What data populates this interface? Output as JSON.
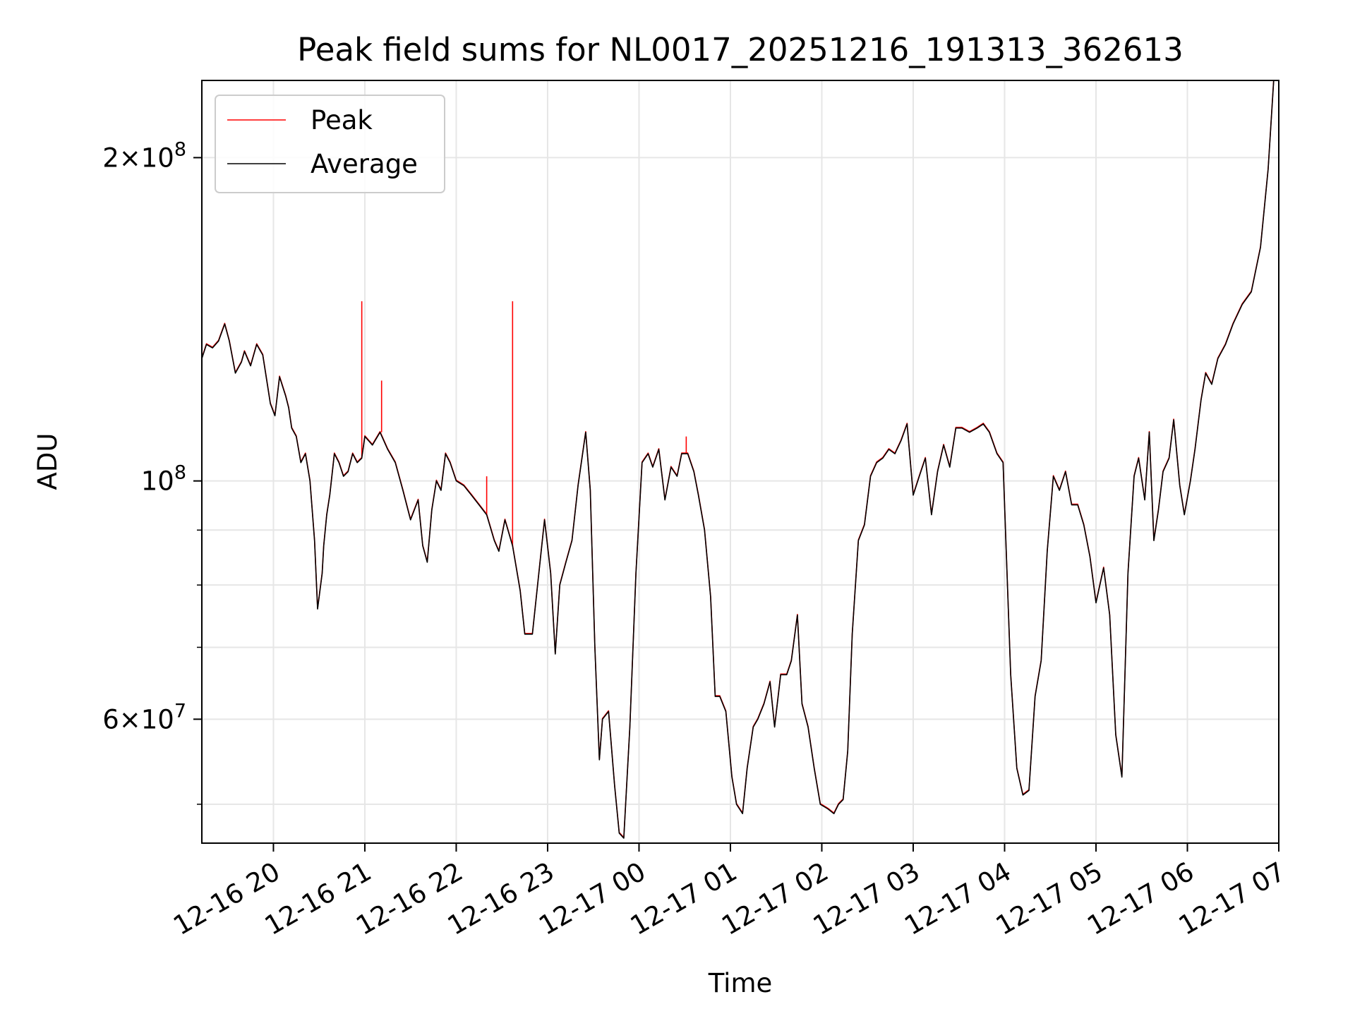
{
  "chart_data": {
    "type": "line",
    "title": "Peak field sums for NL0017_20251216_191313_362613",
    "xlabel": "Time",
    "ylabel": "ADU",
    "y_scale": "log",
    "ylim": [
      46000000,
      236000000
    ],
    "xlim": [
      "2025-12-16 19:13",
      "2025-12-17 07:00"
    ],
    "grid": true,
    "legend_position": "top-left",
    "x_tick_labels": [
      "12-16 20",
      "12-16 21",
      "12-16 22",
      "12-16 23",
      "12-17 00",
      "12-17 01",
      "12-17 02",
      "12-17 03",
      "12-17 04",
      "12-17 05",
      "12-17 06",
      "12-17 07"
    ],
    "x_ticks": [
      "2025-12-16 20:00",
      "2025-12-16 21:00",
      "2025-12-16 22:00",
      "2025-12-16 23:00",
      "2025-12-17 00:00",
      "2025-12-17 01:00",
      "2025-12-17 02:00",
      "2025-12-17 03:00",
      "2025-12-17 04:00",
      "2025-12-17 05:00",
      "2025-12-17 06:00",
      "2025-12-17 07:00"
    ],
    "y_major_ticks": [
      {
        "value": 60000000,
        "mantissa": "6",
        "exponent": "7"
      },
      {
        "value": 100000000,
        "mantissa": "",
        "exponent": "8"
      },
      {
        "value": 200000000,
        "mantissa": "2",
        "exponent": "8"
      }
    ],
    "y_minor_ticks": [
      50000000,
      70000000,
      80000000,
      90000000
    ],
    "series": [
      {
        "name": "Average",
        "color": "#000000",
        "x": [
          "2025-12-16 19:13",
          "2025-12-16 19:16",
          "2025-12-16 19:20",
          "2025-12-16 19:24",
          "2025-12-16 19:28",
          "2025-12-16 19:31",
          "2025-12-16 19:35",
          "2025-12-16 19:39",
          "2025-12-16 19:41",
          "2025-12-16 19:45",
          "2025-12-16 19:49",
          "2025-12-16 19:53",
          "2025-12-16 19:58",
          "2025-12-16 20:01",
          "2025-12-16 20:04",
          "2025-12-16 20:08",
          "2025-12-16 20:10",
          "2025-12-16 20:12",
          "2025-12-16 20:15",
          "2025-12-16 20:18",
          "2025-12-16 20:21",
          "2025-12-16 20:24",
          "2025-12-16 20:27",
          "2025-12-16 20:29",
          "2025-12-16 20:32",
          "2025-12-16 20:33",
          "2025-12-16 20:35",
          "2025-12-16 20:37",
          "2025-12-16 20:40",
          "2025-12-16 20:43",
          "2025-12-16 20:46",
          "2025-12-16 20:49",
          "2025-12-16 20:52",
          "2025-12-16 20:55",
          "2025-12-16 20:58",
          "2025-12-16 21:00",
          "2025-12-16 21:05",
          "2025-12-16 21:10",
          "2025-12-16 21:15",
          "2025-12-16 21:20",
          "2025-12-16 21:25",
          "2025-12-16 21:30",
          "2025-12-16 21:35",
          "2025-12-16 21:38",
          "2025-12-16 21:41",
          "2025-12-16 21:44",
          "2025-12-16 21:47",
          "2025-12-16 21:50",
          "2025-12-16 21:53",
          "2025-12-16 21:56",
          "2025-12-16 22:00",
          "2025-12-16 22:05",
          "2025-12-16 22:10",
          "2025-12-16 22:15",
          "2025-12-16 22:20",
          "2025-12-16 22:25",
          "2025-12-16 22:28",
          "2025-12-16 22:32",
          "2025-12-16 22:37",
          "2025-12-16 22:42",
          "2025-12-16 22:45",
          "2025-12-16 22:50",
          "2025-12-16 22:55",
          "2025-12-16 22:58",
          "2025-12-16 23:02",
          "2025-12-16 23:05",
          "2025-12-16 23:08",
          "2025-12-16 23:12",
          "2025-12-16 23:16",
          "2025-12-16 23:20",
          "2025-12-16 23:25",
          "2025-12-16 23:28",
          "2025-12-16 23:31",
          "2025-12-16 23:34",
          "2025-12-16 23:36",
          "2025-12-16 23:40",
          "2025-12-16 23:44",
          "2025-12-16 23:47",
          "2025-12-16 23:50",
          "2025-12-16 23:54",
          "2025-12-16 23:58",
          "2025-12-17 00:02",
          "2025-12-17 00:06",
          "2025-12-17 00:09",
          "2025-12-17 00:13",
          "2025-12-17 00:17",
          "2025-12-17 00:21",
          "2025-12-17 00:25",
          "2025-12-17 00:28",
          "2025-12-17 00:32",
          "2025-12-17 00:36",
          "2025-12-17 00:39",
          "2025-12-17 00:43",
          "2025-12-17 00:47",
          "2025-12-17 00:50",
          "2025-12-17 00:53",
          "2025-12-17 00:57",
          "2025-12-17 01:01",
          "2025-12-17 01:04",
          "2025-12-17 01:08",
          "2025-12-17 01:11",
          "2025-12-17 01:15",
          "2025-12-17 01:18",
          "2025-12-17 01:22",
          "2025-12-17 01:26",
          "2025-12-17 01:29",
          "2025-12-17 01:33",
          "2025-12-17 01:37",
          "2025-12-17 01:40",
          "2025-12-17 01:44",
          "2025-12-17 01:47",
          "2025-12-17 01:51",
          "2025-12-17 01:55",
          "2025-12-17 01:59",
          "2025-12-17 02:04",
          "2025-12-17 02:08",
          "2025-12-17 02:11",
          "2025-12-17 02:14",
          "2025-12-17 02:17",
          "2025-12-17 02:20",
          "2025-12-17 02:24",
          "2025-12-17 02:28",
          "2025-12-17 02:32",
          "2025-12-17 02:36",
          "2025-12-17 02:40",
          "2025-12-17 02:44",
          "2025-12-17 02:48",
          "2025-12-17 02:52",
          "2025-12-17 02:56",
          "2025-12-17 03:00",
          "2025-12-17 03:04",
          "2025-12-17 03:08",
          "2025-12-17 03:12",
          "2025-12-17 03:16",
          "2025-12-17 03:20",
          "2025-12-17 03:24",
          "2025-12-17 03:28",
          "2025-12-17 03:32",
          "2025-12-17 03:37",
          "2025-12-17 03:42",
          "2025-12-17 03:46",
          "2025-12-17 03:50",
          "2025-12-17 03:55",
          "2025-12-17 03:59",
          "2025-12-17 04:04",
          "2025-12-17 04:08",
          "2025-12-17 04:12",
          "2025-12-17 04:16",
          "2025-12-17 04:20",
          "2025-12-17 04:24",
          "2025-12-17 04:28",
          "2025-12-17 04:32",
          "2025-12-17 04:36",
          "2025-12-17 04:40",
          "2025-12-17 04:44",
          "2025-12-17 04:48",
          "2025-12-17 04:52",
          "2025-12-17 04:56",
          "2025-12-17 05:00",
          "2025-12-17 05:05",
          "2025-12-17 05:09",
          "2025-12-17 05:13",
          "2025-12-17 05:17",
          "2025-12-17 05:21",
          "2025-12-17 05:25",
          "2025-12-17 05:28",
          "2025-12-17 05:32",
          "2025-12-17 05:35",
          "2025-12-17 05:38",
          "2025-12-17 05:41",
          "2025-12-17 05:44",
          "2025-12-17 05:48",
          "2025-12-17 05:51",
          "2025-12-17 05:55",
          "2025-12-17 05:58",
          "2025-12-17 06:02",
          "2025-12-17 06:05",
          "2025-12-17 06:09",
          "2025-12-17 06:12",
          "2025-12-17 06:16",
          "2025-12-17 06:20",
          "2025-12-17 06:25",
          "2025-12-17 06:30",
          "2025-12-17 06:36",
          "2025-12-17 06:42",
          "2025-12-17 06:48",
          "2025-12-17 06:53",
          "2025-12-17 06:57"
        ],
        "y": [
          130000000,
          134000000,
          133000000,
          135000000,
          140000000,
          135000000,
          126000000,
          129000000,
          132000000,
          128000000,
          134000000,
          131000000,
          118000000,
          115000000,
          125000000,
          120000000,
          117000000,
          112000000,
          110000000,
          104000000,
          106000000,
          100000000,
          88000000,
          76000000,
          82000000,
          87000000,
          93000000,
          97000000,
          106000000,
          104000000,
          101000000,
          102000000,
          106000000,
          104000000,
          105000000,
          110000000,
          108000000,
          111000000,
          107000000,
          104000000,
          98000000,
          92000000,
          96000000,
          87000000,
          84000000,
          94000000,
          100000000,
          98000000,
          106000000,
          104000000,
          100000000,
          99000000,
          97000000,
          95000000,
          93000000,
          88000000,
          86000000,
          92000000,
          87000000,
          79000000,
          72000000,
          72000000,
          84000000,
          92000000,
          82000000,
          69000000,
          80000000,
          84000000,
          88000000,
          99000000,
          111000000,
          98000000,
          70000000,
          55000000,
          60000000,
          61000000,
          52000000,
          47000000,
          46500000,
          59000000,
          82000000,
          104000000,
          106000000,
          103000000,
          107000000,
          96000000,
          103000000,
          101000000,
          106000000,
          106000000,
          102000000,
          97000000,
          90000000,
          78000000,
          63000000,
          63000000,
          61000000,
          53000000,
          50000000,
          49000000,
          54000000,
          59000000,
          60000000,
          62000000,
          65000000,
          59000000,
          66000000,
          66000000,
          68000000,
          75000000,
          62000000,
          59000000,
          54000000,
          50000000,
          49500000,
          49000000,
          50000000,
          50500000,
          56000000,
          72000000,
          88000000,
          91000000,
          101000000,
          104000000,
          105000000,
          107000000,
          106000000,
          109000000,
          113000000,
          97000000,
          101000000,
          105000000,
          93000000,
          102000000,
          108000000,
          103000000,
          112000000,
          112000000,
          111000000,
          112000000,
          113000000,
          111000000,
          106000000,
          104000000,
          66000000,
          54000000,
          51000000,
          51500000,
          63000000,
          68000000,
          86000000,
          101000000,
          98000000,
          102000000,
          95000000,
          95000000,
          91000000,
          85000000,
          77000000,
          83000000,
          75000000,
          58000000,
          53000000,
          82000000,
          101000000,
          105000000,
          96000000,
          111000000,
          88000000,
          94000000,
          102000000,
          105000000,
          114000000,
          99000000,
          93000000,
          100000000,
          107000000,
          119000000,
          126000000,
          123000000,
          130000000,
          134000000,
          140000000,
          146000000,
          150000000,
          165000000,
          195000000,
          240000000
        ]
      },
      {
        "name": "Peak",
        "color": "#ff0000",
        "spikes": [
          {
            "x": "2025-12-16 19:28",
            "y": 140000000
          },
          {
            "x": "2025-12-16 20:58",
            "y": 147000000
          },
          {
            "x": "2025-12-16 21:11",
            "y": 124000000
          },
          {
            "x": "2025-12-16 22:20",
            "y": 101000000
          },
          {
            "x": "2025-12-16 22:37",
            "y": 147000000
          },
          {
            "x": "2025-12-17 00:31",
            "y": 110000000
          }
        ]
      }
    ]
  }
}
